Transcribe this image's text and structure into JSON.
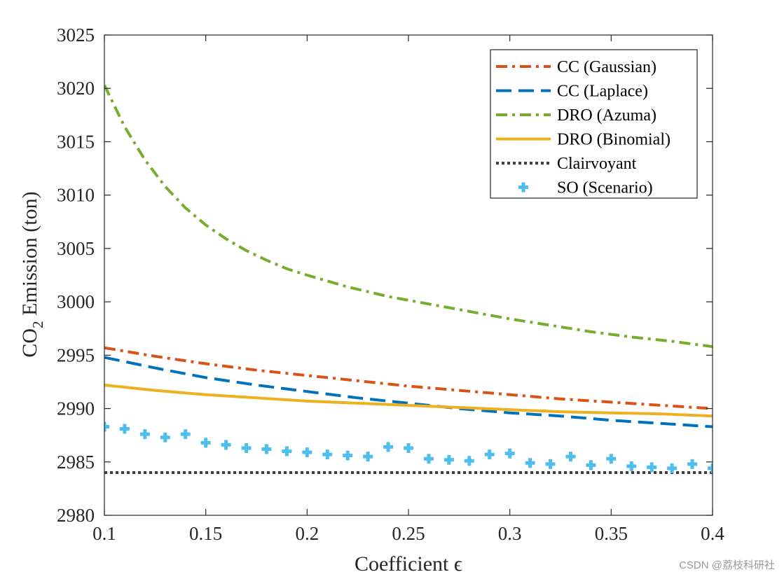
{
  "chart_data": {
    "type": "line",
    "xlabel": "Coefficient ϵ",
    "ylabel": "CO2 Emission (ton)",
    "ylabel_main": "CO",
    "ylabel_sub": "2",
    "ylabel_rest": " Emission (ton)",
    "xlim": [
      0.1,
      0.4
    ],
    "ylim": [
      2980,
      3025
    ],
    "xticks": [
      0.1,
      0.15,
      0.2,
      0.25,
      0.3,
      0.35,
      0.4
    ],
    "xtick_labels": [
      "0.1",
      "0.15",
      "0.2",
      "0.25",
      "0.3",
      "0.35",
      "0.4"
    ],
    "yticks": [
      2980,
      2985,
      2990,
      2995,
      3000,
      3005,
      3010,
      3015,
      3020,
      3025
    ],
    "ytick_labels": [
      "2980",
      "2985",
      "2990",
      "2995",
      "3000",
      "3005",
      "3010",
      "3015",
      "3020",
      "3025"
    ],
    "grid": false,
    "legend_position": "top-right",
    "series": [
      {
        "name": "CC (Gaussian)",
        "color": "#d95319",
        "style": "dashdot",
        "x": [
          0.1,
          0.125,
          0.15,
          0.175,
          0.2,
          0.225,
          0.25,
          0.275,
          0.3,
          0.325,
          0.35,
          0.375,
          0.4
        ],
        "y": [
          2995.7,
          2994.9,
          2994.2,
          2993.6,
          2993.1,
          2992.6,
          2992.1,
          2991.7,
          2991.3,
          2990.9,
          2990.6,
          2990.3,
          2990.0
        ]
      },
      {
        "name": "CC (Laplace)",
        "color": "#0072bd",
        "style": "dashed",
        "x": [
          0.1,
          0.125,
          0.15,
          0.175,
          0.2,
          0.225,
          0.25,
          0.275,
          0.3,
          0.325,
          0.35,
          0.375,
          0.4
        ],
        "y": [
          2994.8,
          2993.8,
          2992.9,
          2992.2,
          2991.6,
          2991.0,
          2990.5,
          2990.0,
          2989.6,
          2989.3,
          2988.9,
          2988.6,
          2988.3
        ]
      },
      {
        "name": "DRO (Azuma)",
        "color": "#77ac30",
        "style": "dashdot",
        "x": [
          0.1,
          0.11,
          0.12,
          0.13,
          0.14,
          0.15,
          0.16,
          0.17,
          0.18,
          0.19,
          0.2,
          0.22,
          0.24,
          0.26,
          0.28,
          0.3,
          0.32,
          0.34,
          0.36,
          0.38,
          0.4
        ],
        "y": [
          3020.3,
          3016.4,
          3013.3,
          3010.8,
          3008.8,
          3007.2,
          3005.9,
          3004.8,
          3003.9,
          3003.1,
          3002.5,
          3001.4,
          3000.5,
          2999.8,
          2999.1,
          2998.4,
          2997.8,
          2997.2,
          2996.7,
          2996.3,
          2995.8
        ]
      },
      {
        "name": "DRO (Binomial)",
        "color": "#edb120",
        "style": "solid",
        "x": [
          0.1,
          0.125,
          0.15,
          0.175,
          0.2,
          0.225,
          0.25,
          0.275,
          0.3,
          0.325,
          0.35,
          0.375,
          0.4
        ],
        "y": [
          2992.2,
          2991.7,
          2991.3,
          2991.0,
          2990.7,
          2990.5,
          2990.3,
          2990.1,
          2989.9,
          2989.7,
          2989.6,
          2989.5,
          2989.3
        ]
      },
      {
        "name": "Clairvoyant",
        "color": "#404040",
        "style": "dotted",
        "x": [
          0.1,
          0.4
        ],
        "y": [
          2984.0,
          2984.0
        ]
      },
      {
        "name": "SO (Scenario)",
        "color": "#4dbeee",
        "style": "markers",
        "x": [
          0.1,
          0.11,
          0.12,
          0.13,
          0.14,
          0.15,
          0.16,
          0.17,
          0.18,
          0.19,
          0.2,
          0.21,
          0.22,
          0.23,
          0.24,
          0.25,
          0.26,
          0.27,
          0.28,
          0.29,
          0.3,
          0.31,
          0.32,
          0.33,
          0.34,
          0.35,
          0.36,
          0.37,
          0.38,
          0.39,
          0.4
        ],
        "y": [
          2988.3,
          2988.1,
          2987.6,
          2987.3,
          2987.6,
          2986.8,
          2986.6,
          2986.3,
          2986.2,
          2986.0,
          2985.9,
          2985.7,
          2985.6,
          2985.5,
          2986.4,
          2986.3,
          2985.3,
          2985.2,
          2985.1,
          2985.7,
          2985.8,
          2984.9,
          2984.8,
          2985.5,
          2984.7,
          2985.3,
          2984.6,
          2984.5,
          2984.4,
          2984.8,
          2984.4
        ]
      }
    ]
  },
  "watermark": "CSDN @荔枝科研社"
}
